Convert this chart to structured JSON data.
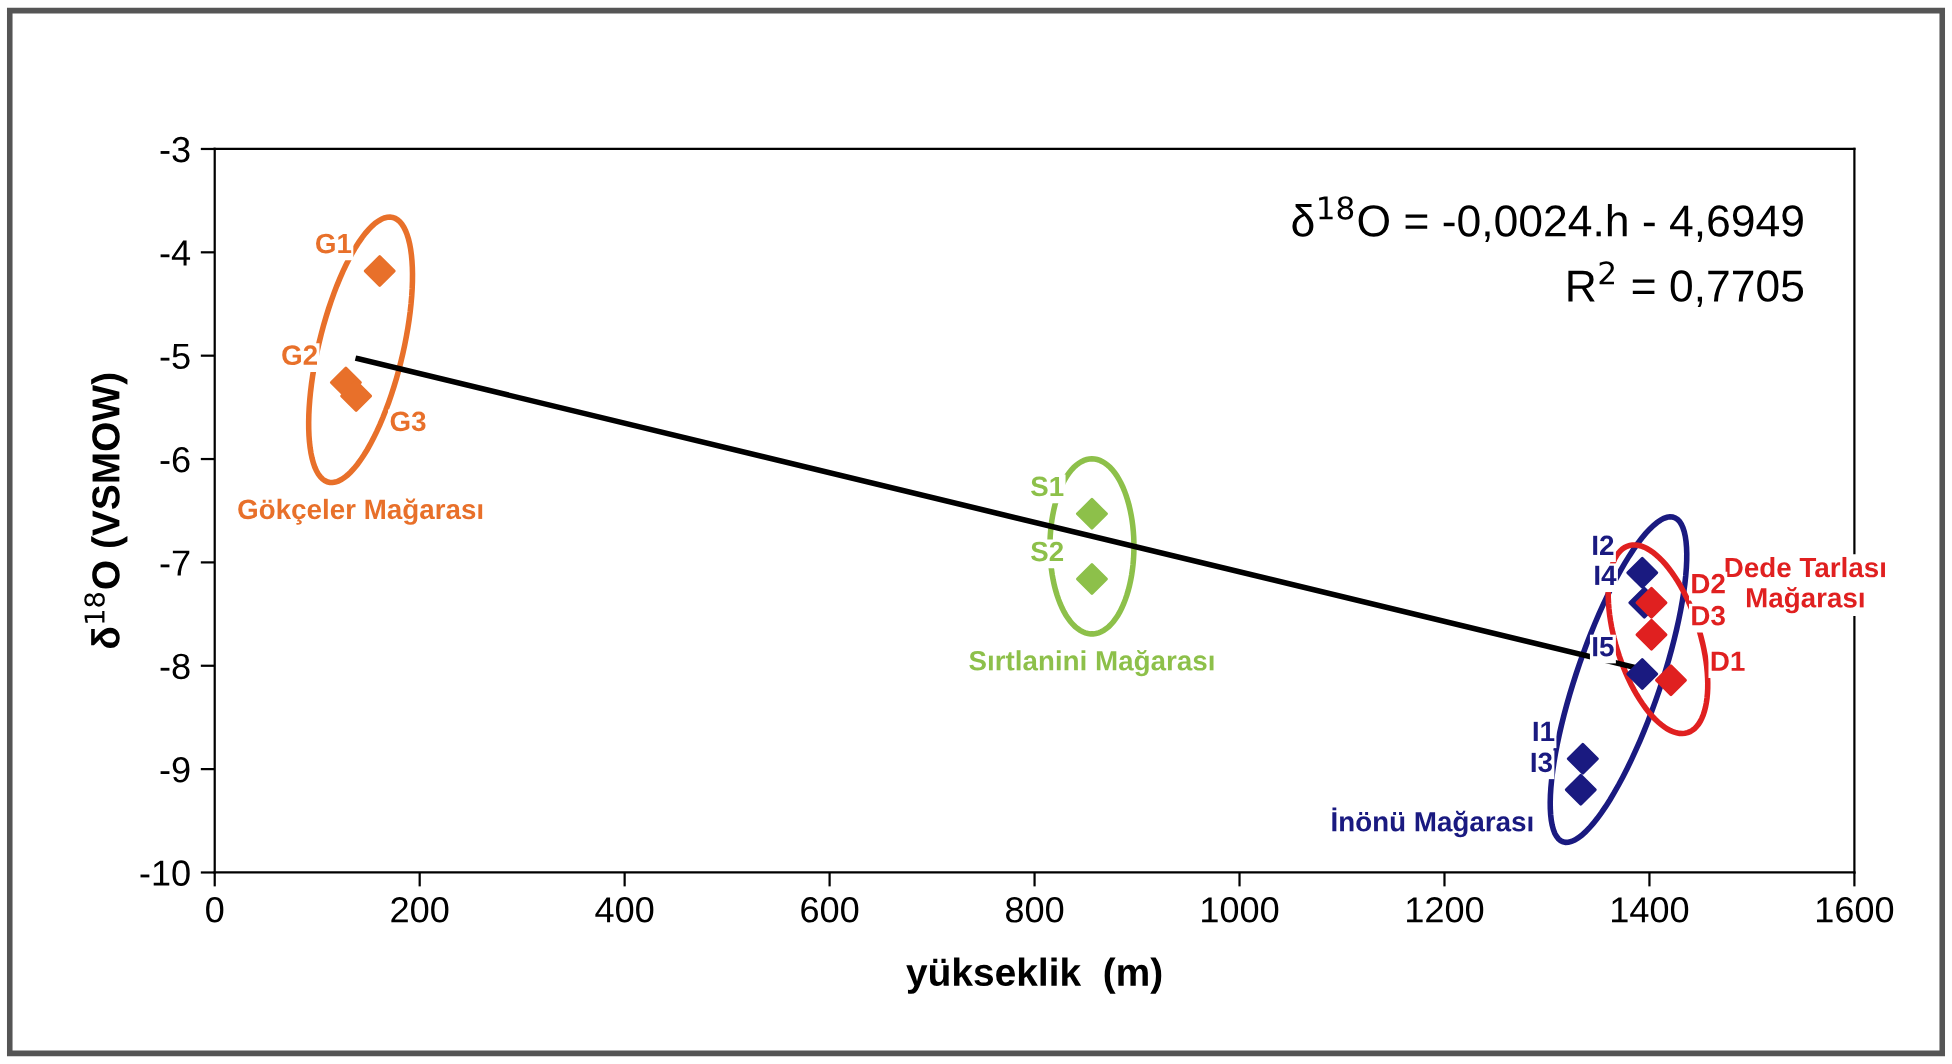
{
  "chart_data": {
    "type": "scatter",
    "xlabel": "yükseklik  (m)",
    "ylabel": "δ$^{18}$O (VSMOW)",
    "xlim": [
      0,
      1600
    ],
    "xticks": [
      0,
      200,
      400,
      600,
      800,
      1000,
      1200,
      1400,
      1600
    ],
    "ylim": [
      -10,
      -3
    ],
    "yticks": [
      -10,
      -9,
      -8,
      -7,
      -6,
      -5,
      -4,
      -3
    ],
    "grid": false,
    "marker": "diamond",
    "series": [
      {
        "name": "Gökçeler Mağarası",
        "color": "#e8702a",
        "x": [
          161,
          128,
          138
        ],
        "values": [
          -4.18,
          -5.26,
          -5.39
        ]
      },
      {
        "name": "Sırtlanini Mağarası",
        "color": "#8dc04a",
        "x": [
          856,
          856
        ],
        "values": [
          -6.53,
          -7.16
        ]
      },
      {
        "name": "İnönü Mağarası",
        "color": "#1a1a80",
        "x": [
          1393,
          1395,
          1393,
          1335,
          1333
        ],
        "values": [
          -7.1,
          -7.39,
          -8.08,
          -8.9,
          -9.2
        ]
      },
      {
        "name": "Dede Tarlası\nMağarası",
        "color": "#e02020",
        "x": [
          1402,
          1402,
          1421
        ],
        "values": [
          -7.39,
          -7.7,
          -8.14
        ]
      },
      {
        "type": "line",
        "color": "#000000",
        "marker": "none",
        "x": [
          140,
          1400
        ],
        "values": [
          -5.03,
          -8.05
        ]
      }
    ],
    "annotations": [
      "δ$^{18}$O = -0,0024.h - 4,6949",
      "R$^{2}$ = 0,7705",
      {
        "text": "G1",
        "x": 161,
        "y": -4.18
      },
      {
        "text": "G2",
        "x": 128,
        "y": -5.26
      },
      {
        "text": "G3",
        "x": 138,
        "y": -5.39
      },
      {
        "text": "S1",
        "x": 856,
        "y": -6.53
      },
      {
        "text": "S2",
        "x": 856,
        "y": -7.16
      },
      {
        "text": "I2",
        "x": 1393,
        "y": -7.1
      },
      {
        "text": "I4",
        "x": 1395,
        "y": -7.39
      },
      {
        "text": "I5",
        "x": 1393,
        "y": -8.08
      },
      {
        "text": "I1",
        "x": 1335,
        "y": -8.9
      },
      {
        "text": "I3",
        "x": 1333,
        "y": -9.2
      },
      {
        "text": "D2",
        "x": 1402,
        "y": -7.39
      },
      {
        "text": "D3",
        "x": 1402,
        "y": -7.7
      },
      {
        "text": "D1",
        "x": 1421,
        "y": -8.14
      }
    ]
  }
}
